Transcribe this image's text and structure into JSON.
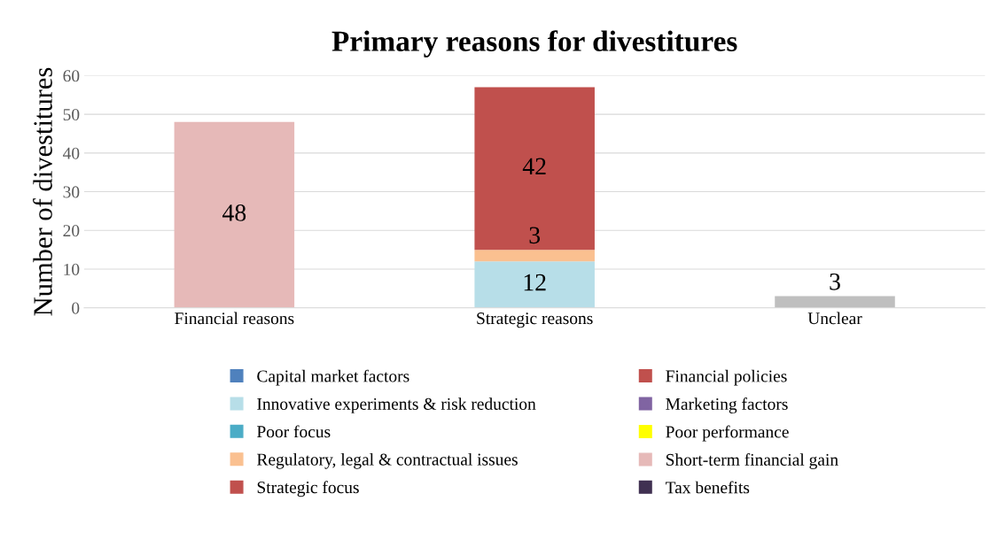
{
  "chart_data": {
    "type": "bar",
    "stacked": true,
    "title": "Primary reasons for divestitures",
    "ylabel": "Number of divestitures",
    "categories": [
      "Financial reasons",
      "Strategic reasons",
      "Unclear"
    ],
    "series": [
      {
        "name": "Capital market factors",
        "color": "#4f81bd",
        "values": [
          null,
          null,
          null
        ]
      },
      {
        "name": "Financial policies",
        "color": "#c0504d",
        "values": [
          null,
          null,
          null
        ]
      },
      {
        "name": "Innovative experiments & risk reduction",
        "color": "#b7dee8",
        "values": [
          null,
          12,
          null
        ]
      },
      {
        "name": "Marketing factors",
        "color": "#8064a2",
        "values": [
          null,
          null,
          null
        ]
      },
      {
        "name": "Poor focus",
        "color": "#4bacc6",
        "values": [
          null,
          null,
          null
        ]
      },
      {
        "name": "Poor performance",
        "color": "#ffff00",
        "values": [
          null,
          null,
          null
        ]
      },
      {
        "name": "Regulatory, legal & contractual issues",
        "color": "#fac090",
        "values": [
          null,
          3,
          null
        ]
      },
      {
        "name": "Short-term financial gain",
        "color": "#e6b9b8",
        "values": [
          48,
          null,
          null
        ]
      },
      {
        "name": "Strategic focus",
        "color": "#c0504d",
        "values": [
          null,
          42,
          null
        ]
      },
      {
        "name": "Tax benefits",
        "color": "#403152",
        "values": [
          null,
          null,
          null
        ]
      },
      {
        "color": "#bfbfbf",
        "values": [
          null,
          null,
          3
        ]
      }
    ],
    "ylim": [
      0,
      60
    ],
    "yticks": [
      0,
      10,
      20,
      30,
      40,
      50,
      60
    ],
    "grid": "y",
    "legend": "bottom",
    "data_labels": true
  }
}
